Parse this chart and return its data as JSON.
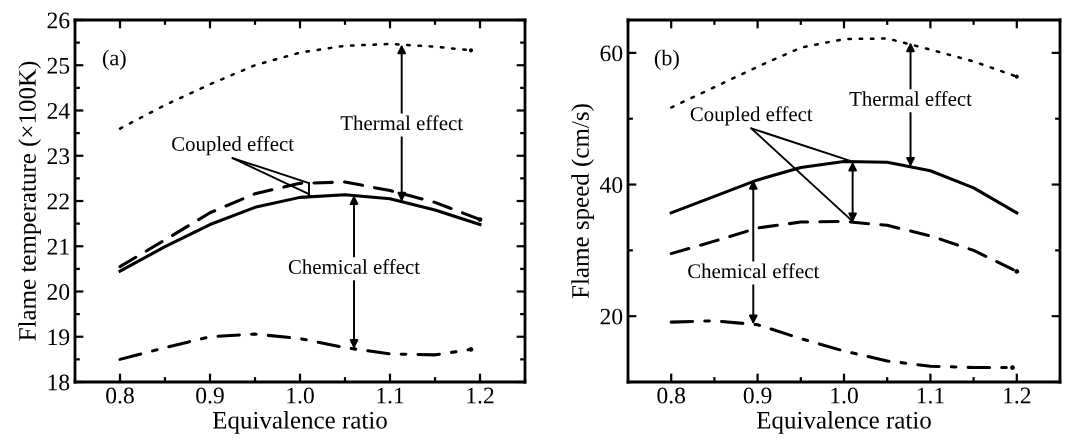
{
  "chart_data": [
    {
      "type": "line",
      "xlabel": "Equivalence ratio",
      "ylabel": "Flame temperature (×100K)",
      "x": [
        0.8,
        0.85,
        0.9,
        0.95,
        1.0,
        1.05,
        1.1,
        1.15,
        1.2
      ],
      "series": [
        {
          "color": "#000000",
          "line_style": "dotted",
          "x": [
            0.8,
            0.85,
            0.9,
            0.95,
            1.0,
            1.05,
            1.1,
            1.15,
            1.19
          ],
          "values": [
            23.6,
            24.12,
            24.58,
            25.0,
            25.28,
            25.43,
            25.47,
            25.41,
            25.33
          ]
        },
        {
          "color": "#000000",
          "line_style": "dashed",
          "values": [
            20.55,
            21.14,
            21.74,
            22.16,
            22.39,
            22.42,
            22.23,
            21.97,
            21.59
          ]
        },
        {
          "color": "#000000",
          "line_style": "solid",
          "values": [
            20.45,
            20.99,
            21.48,
            21.86,
            22.08,
            22.14,
            22.05,
            21.8,
            21.48
          ]
        },
        {
          "color": "#000000",
          "line_style": "dashdot",
          "x": [
            0.8,
            0.85,
            0.9,
            0.95,
            1.0,
            1.05,
            1.1,
            1.15,
            1.19
          ],
          "values": [
            18.5,
            18.76,
            19.0,
            19.06,
            18.96,
            18.76,
            18.62,
            18.6,
            18.72
          ]
        }
      ],
      "annotations": [
        "(a)",
        {
          "text": "Coupled effect",
          "x": 1.01,
          "y": 22.15
        },
        {
          "text": "Thermal effect",
          "x": 1.113,
          "y": 25.46
        },
        {
          "text": "Chemical effect",
          "x": 1.06,
          "y": 22.13
        }
      ],
      "xlim": [
        0.75,
        1.25
      ],
      "xticks": [
        {
          "value": 0.8,
          "label": "0.8"
        },
        {
          "value": 0.9,
          "label": "0.9"
        },
        {
          "value": 1.0,
          "label": "1.0"
        },
        {
          "value": 1.1,
          "label": "1.1"
        },
        {
          "value": 1.2,
          "label": "1.2"
        }
      ],
      "ylim": [
        18,
        26
      ],
      "yticks": [
        18,
        19,
        20,
        21,
        22,
        23,
        24,
        25,
        26
      ],
      "grid": false
    },
    {
      "type": "line",
      "xlabel": "Equivalence ratio",
      "ylabel": "Flame speed (cm/s)",
      "x": [
        0.8,
        0.85,
        0.9,
        0.95,
        1.0,
        1.05,
        1.1,
        1.15,
        1.2
      ],
      "series": [
        {
          "color": "#000000",
          "line_style": "dotted",
          "values": [
            51.7,
            54.8,
            57.9,
            60.8,
            62.1,
            62.2,
            60.5,
            58.7,
            56.4
          ]
        },
        {
          "color": "#000000",
          "line_style": "solid",
          "values": [
            35.7,
            38.2,
            40.7,
            42.6,
            43.5,
            43.4,
            42.1,
            39.5,
            35.7
          ]
        },
        {
          "color": "#000000",
          "line_style": "dashed",
          "values": [
            29.5,
            31.4,
            33.4,
            34.3,
            34.4,
            33.8,
            32.2,
            30.0,
            26.8
          ]
        },
        {
          "color": "#000000",
          "line_style": "dashdot",
          "x": [
            0.8,
            0.85,
            0.9,
            0.95,
            1.0,
            1.05,
            1.1,
            1.15,
            1.195
          ],
          "values": [
            19.1,
            19.3,
            18.7,
            16.6,
            14.7,
            13.2,
            12.4,
            12.2,
            12.2
          ]
        }
      ],
      "annotations": [
        "(b)",
        {
          "text": "Coupled effect",
          "x": 1.01,
          "y": 34.4
        },
        {
          "text": "Thermal effect",
          "x": 1.077,
          "y": 61.6
        },
        {
          "text": "Chemical effect",
          "x": 0.895,
          "y": 40.7
        }
      ],
      "xlim": [
        0.75,
        1.25
      ],
      "xticks": [
        {
          "value": 0.8,
          "label": "0.8"
        },
        {
          "value": 0.9,
          "label": "0.9"
        },
        {
          "value": 1.0,
          "label": "1.0"
        },
        {
          "value": 1.1,
          "label": "1.1"
        },
        {
          "value": 1.2,
          "label": "1.2"
        }
      ],
      "ylim": [
        10,
        65
      ],
      "yticks": [
        20,
        40,
        60
      ],
      "grid": false
    }
  ]
}
